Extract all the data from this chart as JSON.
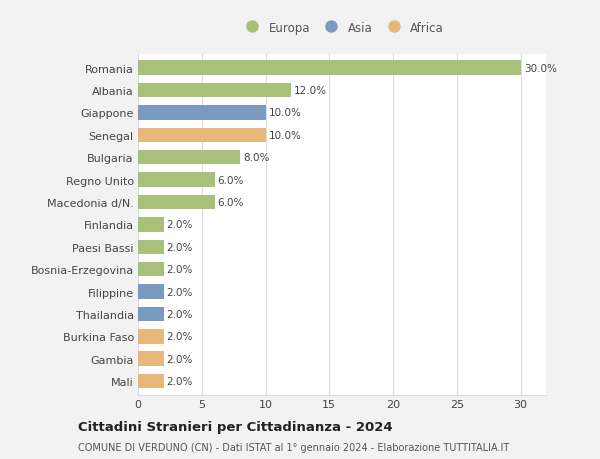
{
  "categories": [
    "Romania",
    "Albania",
    "Giappone",
    "Senegal",
    "Bulgaria",
    "Regno Unito",
    "Macedonia d/N.",
    "Finlandia",
    "Paesi Bassi",
    "Bosnia-Erzegovina",
    "Filippine",
    "Thailandia",
    "Burkina Faso",
    "Gambia",
    "Mali"
  ],
  "values": [
    30.0,
    12.0,
    10.0,
    10.0,
    8.0,
    6.0,
    6.0,
    2.0,
    2.0,
    2.0,
    2.0,
    2.0,
    2.0,
    2.0,
    2.0
  ],
  "continents": [
    "Europa",
    "Europa",
    "Asia",
    "Africa",
    "Europa",
    "Europa",
    "Europa",
    "Europa",
    "Europa",
    "Europa",
    "Asia",
    "Asia",
    "Africa",
    "Africa",
    "Africa"
  ],
  "colors": {
    "Europa": "#a8c07a",
    "Asia": "#7a9bbf",
    "Africa": "#e8b87a"
  },
  "legend_labels": [
    "Europa",
    "Asia",
    "Africa"
  ],
  "legend_colors": [
    "#a8c07a",
    "#7a9bbf",
    "#e8b87a"
  ],
  "title": "Cittadini Stranieri per Cittadinanza - 2024",
  "subtitle": "COMUNE DI VERDUNO (CN) - Dati ISTAT al 1° gennaio 2024 - Elaborazione TUTTITALIA.IT",
  "xlabel_ticks": [
    0,
    5,
    10,
    15,
    20,
    25,
    30
  ],
  "xlim": [
    0,
    32
  ],
  "background_color": "#f2f2f2",
  "plot_background": "#ffffff",
  "grid_color": "#dddddd",
  "bar_height": 0.65,
  "value_label_fontsize": 7.5,
  "tick_fontsize": 8,
  "title_fontsize": 9.5,
  "subtitle_fontsize": 7.0,
  "legend_fontsize": 8.5
}
